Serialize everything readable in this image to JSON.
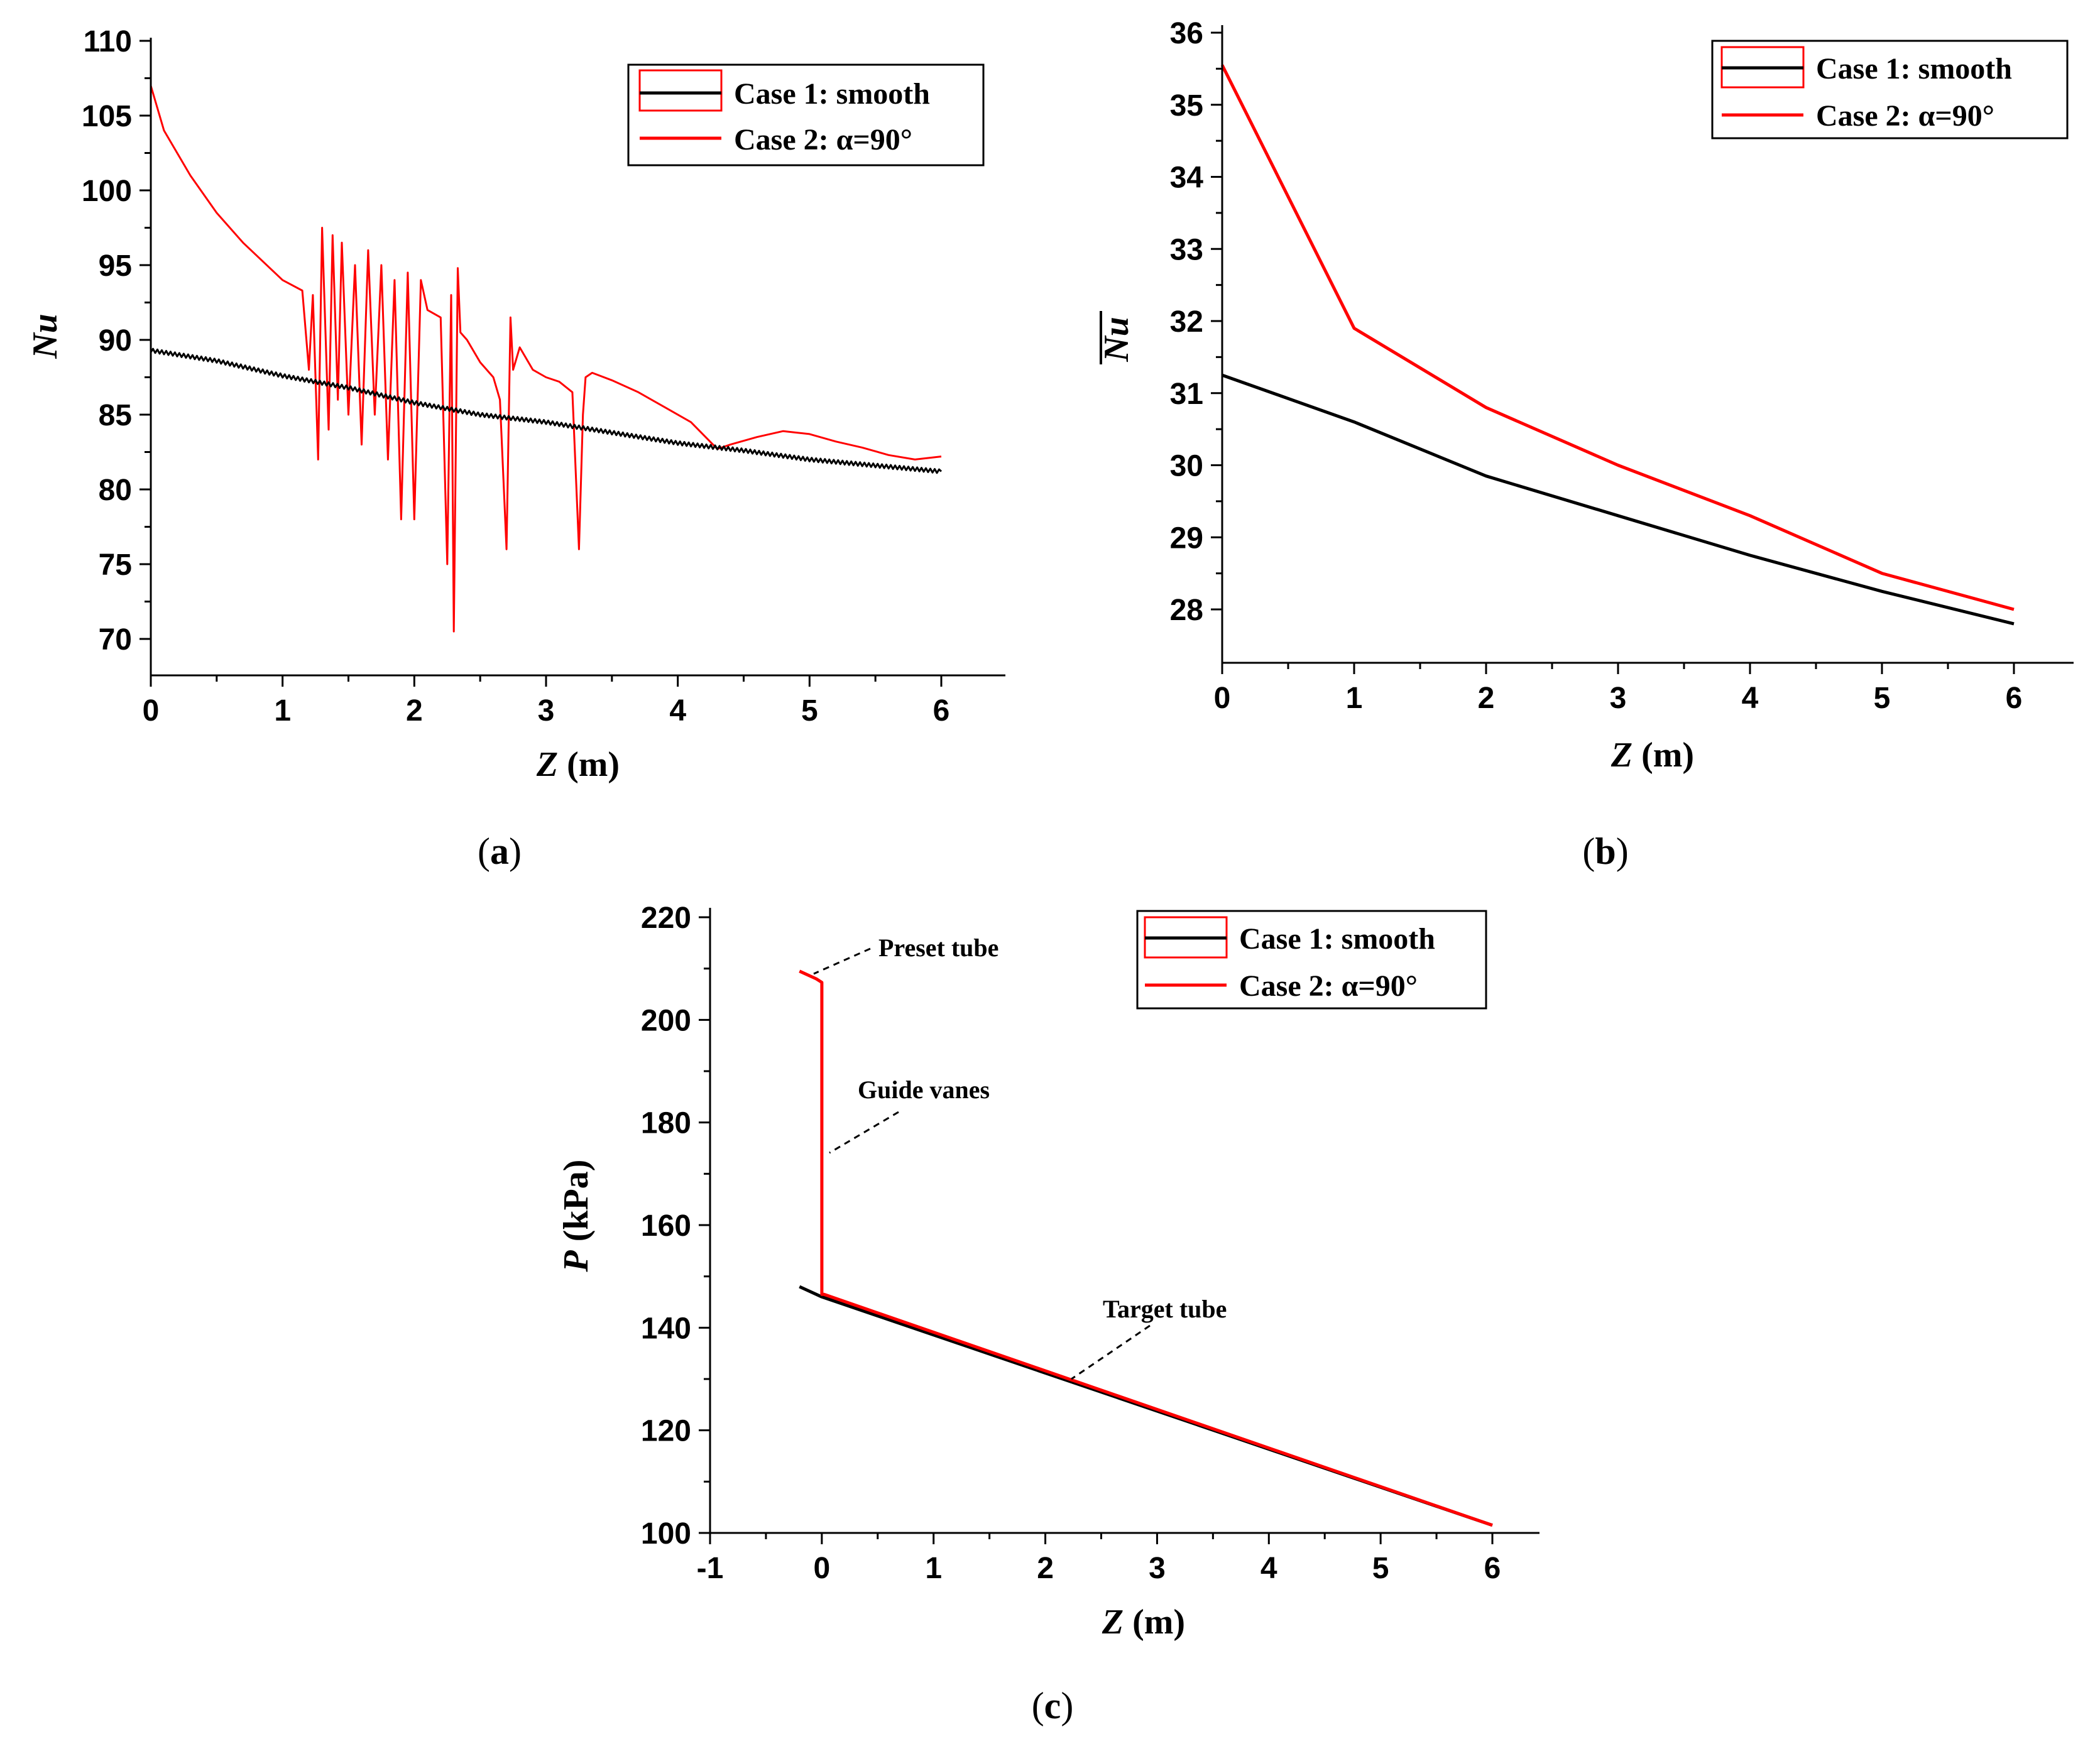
{
  "colors": {
    "case1": "#000000",
    "case2": "#ff0000"
  },
  "chart_data": [
    {
      "id": "a",
      "type": "line",
      "caption_letter": "a",
      "xlabel_var": "Z",
      "xlabel_unit": " (m)",
      "ylabel": "Nu",
      "xlim": [
        0,
        6.5
      ],
      "ylim": [
        67.5,
        110
      ],
      "xticks": [
        "0",
        "1",
        "2",
        "3",
        "4",
        "5",
        "6"
      ],
      "yticks": [
        "70",
        "75",
        "80",
        "85",
        "90",
        "95",
        "100",
        "105",
        "110"
      ],
      "legend": [
        "Case 1: smooth",
        "Case 2: α=90°"
      ],
      "series": [
        {
          "name": "Case 1: smooth",
          "x": [
            0,
            0.5,
            1,
            1.5,
            2,
            2.5,
            3,
            3.5,
            4,
            4.5,
            5,
            5.5,
            6
          ],
          "y": [
            89.3,
            88.6,
            87.6,
            86.8,
            85.8,
            85.0,
            84.5,
            83.8,
            83.1,
            82.6,
            82.0,
            81.6,
            81.2
          ]
        },
        {
          "name": "Case 2: α=90°",
          "x": [
            0,
            0.1,
            0.3,
            0.5,
            0.7,
            1.0,
            1.15,
            1.2,
            1.23,
            1.27,
            1.3,
            1.35,
            1.38,
            1.42,
            1.45,
            1.5,
            1.55,
            1.6,
            1.65,
            1.7,
            1.75,
            1.8,
            1.85,
            1.9,
            1.95,
            2.0,
            2.05,
            2.1,
            2.2,
            2.25,
            2.28,
            2.3,
            2.33,
            2.35,
            2.4,
            2.5,
            2.6,
            2.65,
            2.7,
            2.73,
            2.75,
            2.8,
            2.9,
            3.0,
            3.1,
            3.2,
            3.25,
            3.28,
            3.3,
            3.35,
            3.5,
            3.7,
            3.9,
            4.1,
            4.3,
            4.4,
            4.6,
            4.8,
            5.0,
            5.2,
            5.4,
            5.6,
            5.8,
            6.0
          ],
          "y": [
            107,
            104,
            101,
            98.5,
            96.5,
            94,
            93.3,
            88,
            93,
            82,
            97.5,
            84,
            97,
            86,
            96.5,
            85,
            95,
            83,
            96,
            85,
            95,
            82,
            94,
            78,
            94.5,
            78,
            94,
            92,
            91.5,
            75,
            93,
            70.5,
            94.8,
            90.5,
            90,
            88.5,
            87.5,
            86,
            76,
            91.5,
            88,
            89.5,
            88,
            87.5,
            87.2,
            86.5,
            76,
            85,
            87.5,
            87.8,
            87.3,
            86.5,
            85.5,
            84.5,
            82.7,
            83,
            83.5,
            83.9,
            83.7,
            83.2,
            82.8,
            82.3,
            82.0,
            82.2
          ]
        }
      ]
    },
    {
      "id": "b",
      "type": "line",
      "caption_letter": "b",
      "xlabel_var": "Z",
      "xlabel_unit": " (m)",
      "ylabel": "Nu",
      "xlim": [
        0,
        6.5
      ],
      "ylim": [
        27.2,
        36.2
      ],
      "xticks": [
        "0",
        "1",
        "2",
        "3",
        "4",
        "5",
        "6"
      ],
      "yticks": [
        "28",
        "29",
        "30",
        "31",
        "32",
        "33",
        "34",
        "35",
        "36"
      ],
      "legend": [
        "Case 1: smooth",
        "Case 2: α=90°"
      ],
      "series": [
        {
          "name": "Case 1: smooth",
          "x": [
            0,
            1,
            2,
            3,
            4,
            5,
            6
          ],
          "y": [
            31.25,
            30.6,
            29.85,
            29.3,
            28.75,
            28.25,
            27.8
          ]
        },
        {
          "name": "Case 2: α=90°",
          "x": [
            0,
            1,
            2,
            3,
            4,
            5,
            6
          ],
          "y": [
            35.55,
            31.9,
            30.8,
            30.0,
            29.3,
            28.5,
            28.0
          ]
        }
      ]
    },
    {
      "id": "c",
      "type": "line",
      "caption_letter": "c",
      "xlabel_var": "Z",
      "xlabel_unit": " (m)",
      "ylabel_var": "P",
      "ylabel_unit": " (kPa)",
      "xlim": [
        -1,
        6.5
      ],
      "ylim": [
        100,
        220
      ],
      "xticks": [
        "-1",
        "0",
        "1",
        "2",
        "3",
        "4",
        "5",
        "6"
      ],
      "yticks": [
        "100",
        "120",
        "140",
        "160",
        "180",
        "200",
        "220"
      ],
      "legend": [
        "Case 1: smooth",
        "Case 2: α=90°"
      ],
      "annotations": [
        "Preset tube",
        "Guide vanes",
        "Target tube"
      ],
      "series": [
        {
          "name": "Case 1: smooth",
          "x": [
            -0.2,
            0,
            6
          ],
          "y": [
            148,
            146,
            101.5
          ]
        },
        {
          "name": "Case 2: α=90°",
          "x": [
            -0.2,
            -0.05,
            0,
            0,
            0.02,
            6
          ],
          "y": [
            209.5,
            208,
            207.3,
            146.5,
            146.5,
            101.5
          ]
        }
      ]
    }
  ]
}
